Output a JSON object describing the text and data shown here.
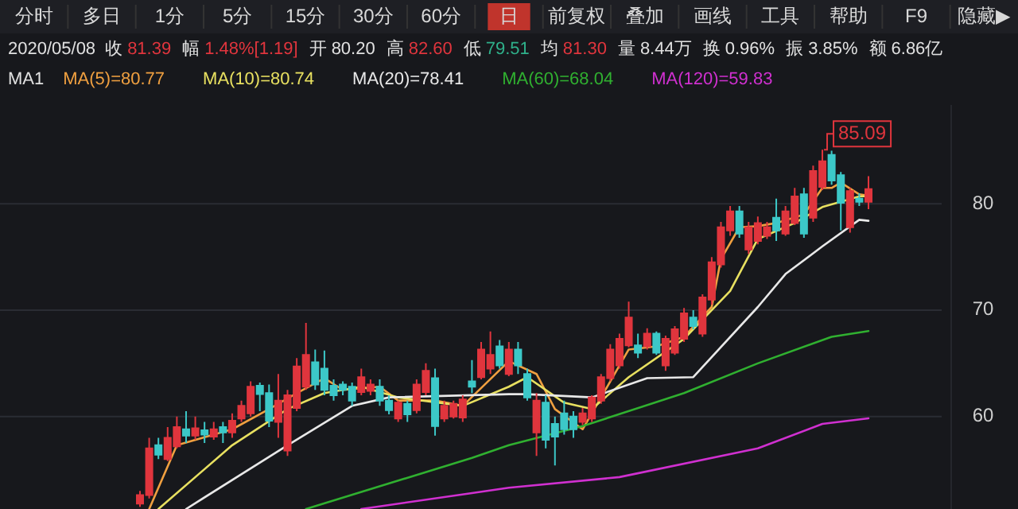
{
  "chart_data": {
    "type": "candlestick",
    "categories": [
      null,
      null,
      null,
      null,
      null,
      null,
      null,
      null,
      null,
      null,
      null,
      null,
      null,
      null,
      null,
      null,
      null,
      null,
      null,
      null,
      null,
      null,
      null,
      null,
      null,
      null,
      null,
      null,
      null,
      null,
      null,
      null,
      null,
      null,
      null,
      null,
      null,
      null,
      null,
      null,
      null,
      null,
      null,
      null,
      null,
      null,
      null,
      null,
      null,
      null,
      null,
      null,
      null,
      null,
      null,
      null,
      null,
      null,
      null,
      null,
      null,
      null,
      null,
      null,
      null,
      null,
      null,
      null,
      null,
      null,
      null,
      null,
      null,
      null,
      null,
      null,
      null,
      null,
      null,
      null
    ],
    "ohlc": [
      [
        51.8,
        53,
        51.5,
        52.6
      ],
      [
        52.6,
        58,
        52.3,
        57
      ],
      [
        57.3,
        58,
        56,
        56.4
      ],
      [
        56,
        59,
        55.8,
        58
      ],
      [
        57.2,
        60,
        57,
        59
      ],
      [
        58.8,
        60.5,
        57.5,
        58.2
      ],
      [
        58.2,
        60,
        57.8,
        58.9
      ],
      [
        58.7,
        59.5,
        57.5,
        58.3
      ],
      [
        58.1,
        59.5,
        57.8,
        58.8
      ],
      [
        59,
        59.5,
        57.5,
        58.5
      ],
      [
        58.5,
        60.3,
        58,
        59.6
      ],
      [
        59.8,
        61.5,
        59.5,
        61
      ],
      [
        60.3,
        63.3,
        60,
        62.8
      ],
      [
        62.9,
        63.2,
        60.5,
        62.1
      ],
      [
        62.2,
        63,
        59,
        59.6
      ],
      [
        59.5,
        64,
        58,
        61.5
      ],
      [
        56.8,
        62.5,
        56.3,
        62
      ],
      [
        60.8,
        65.5,
        60.5,
        64.7
      ],
      [
        62.8,
        68.8,
        62.5,
        65.8
      ],
      [
        65.1,
        66.3,
        62.5,
        63
      ],
      [
        64.5,
        66.2,
        62,
        62.5
      ],
      [
        62.9,
        63.5,
        61.5,
        62
      ],
      [
        63,
        63.3,
        62,
        62.5
      ],
      [
        62.8,
        63.2,
        61,
        61.5
      ],
      [
        62.3,
        64.5,
        62,
        63.7
      ],
      [
        62.4,
        63.5,
        62,
        63
      ],
      [
        62.8,
        63.5,
        61,
        61.5
      ],
      [
        61.5,
        62,
        60.2,
        60.6
      ],
      [
        59.8,
        61.5,
        59.5,
        61.3
      ],
      [
        61.2,
        61.5,
        59.5,
        60.2
      ],
      [
        60.6,
        63.5,
        60.3,
        63
      ],
      [
        62.3,
        65,
        62,
        64.3
      ],
      [
        63.6,
        64.5,
        58.2,
        59.1
      ],
      [
        59.8,
        61.5,
        59.5,
        61
      ],
      [
        60,
        61.5,
        59.8,
        61.2
      ],
      [
        59.9,
        62,
        59.5,
        61.6
      ],
      [
        63.3,
        65.3,
        62.2,
        62.8
      ],
      [
        63.7,
        67,
        63.5,
        66.3
      ],
      [
        64.5,
        68,
        64,
        65.8
      ],
      [
        66.6,
        67.2,
        64.5,
        64.8
      ],
      [
        64,
        67,
        63.8,
        66.3
      ],
      [
        66.3,
        67,
        64,
        64.8
      ],
      [
        64,
        64.5,
        61.5,
        61.8
      ],
      [
        58.5,
        62.2,
        56.3,
        61.5
      ],
      [
        61.3,
        62,
        57,
        57.8
      ],
      [
        59.3,
        60,
        55.4,
        58.1
      ],
      [
        60.3,
        61.5,
        58.3,
        58.8
      ],
      [
        60,
        60.5,
        58,
        58.8
      ],
      [
        59.5,
        60.8,
        59.2,
        60.3
      ],
      [
        59.8,
        62,
        59.5,
        61.8
      ],
      [
        61.5,
        64,
        61.2,
        63.7
      ],
      [
        63.6,
        66.8,
        63.3,
        66.3
      ],
      [
        64.8,
        67.8,
        64.5,
        67.3
      ],
      [
        66.7,
        70.8,
        66.5,
        69.3
      ],
      [
        66.7,
        67.8,
        65.5,
        66
      ],
      [
        66.6,
        68.3,
        66.3,
        67.8
      ],
      [
        67.8,
        68,
        65.8,
        66
      ],
      [
        64.8,
        67.6,
        64.3,
        67.3
      ],
      [
        66,
        68.5,
        65.8,
        68.2
      ],
      [
        67.3,
        70.2,
        67,
        69.7
      ],
      [
        69.3,
        70,
        68.2,
        68.5
      ],
      [
        67.8,
        71.5,
        67.5,
        71.2
      ],
      [
        71,
        75,
        70.5,
        74.5
      ],
      [
        74.3,
        78.3,
        74,
        77.8
      ],
      [
        77.5,
        79.8,
        77,
        79.3
      ],
      [
        79.3,
        79.8,
        76.8,
        77.2
      ],
      [
        75.7,
        78.3,
        75.3,
        77.8
      ],
      [
        76.5,
        78.8,
        76.2,
        78.2
      ],
      [
        77,
        78.3,
        76.7,
        77.8
      ],
      [
        78.7,
        80.5,
        76.5,
        77.5
      ],
      [
        77.2,
        79.8,
        77,
        79.3
      ],
      [
        78.2,
        81.5,
        78,
        80.7
      ],
      [
        80.9,
        81.5,
        76.8,
        77.2
      ],
      [
        78.7,
        83.6,
        78.3,
        83.1
      ],
      [
        81.6,
        85.09,
        81.3,
        84
      ],
      [
        84.6,
        85,
        81.8,
        82.2
      ],
      [
        82.7,
        83,
        77.5,
        80.1
      ],
      [
        77.8,
        81.5,
        77.3,
        81.2
      ],
      [
        80.5,
        81,
        79.8,
        80.2
      ],
      [
        80.2,
        82.6,
        79.51,
        81.39
      ]
    ],
    "series": [
      {
        "name": "MA(5)=80.77",
        "type": "line",
        "color": "#f0a040",
        "values": [
          null,
          51.3,
          null,
          null,
          57.3,
          null,
          null,
          null,
          null,
          null,
          58.8,
          null,
          null,
          null,
          60.7,
          null,
          null,
          62.2,
          null,
          null,
          63.6,
          null,
          62.5,
          null,
          null,
          null,
          62.8,
          null,
          61.5,
          null,
          null,
          null,
          61.5,
          null,
          null,
          61,
          null,
          null,
          null,
          null,
          65.2,
          null,
          null,
          64,
          null,
          60.7,
          null,
          null,
          58.8,
          null,
          61.8,
          null,
          null,
          66.3,
          null,
          null,
          66.6,
          null,
          null,
          67.5,
          null,
          null,
          70.3,
          74.8,
          null,
          77.8,
          null,
          77.9,
          null,
          78.2,
          null,
          null,
          79,
          null,
          81.5,
          81.5,
          82,
          null,
          80.9,
          80.77
        ]
      },
      {
        "name": "MA(10)=80.74",
        "type": "line",
        "color": "#e8e060",
        "values": [
          null,
          null,
          51.3,
          null,
          null,
          null,
          null,
          null,
          null,
          null,
          57.3,
          null,
          null,
          null,
          null,
          null,
          60.7,
          null,
          null,
          null,
          62.2,
          null,
          null,
          null,
          62.8,
          null,
          null,
          null,
          61.8,
          null,
          null,
          null,
          null,
          null,
          null,
          61,
          null,
          null,
          null,
          null,
          62.8,
          null,
          63.7,
          null,
          null,
          null,
          61.3,
          null,
          null,
          60.7,
          null,
          null,
          null,
          63.7,
          null,
          null,
          null,
          null,
          null,
          67.3,
          null,
          null,
          null,
          null,
          71.8,
          null,
          null,
          76.7,
          null,
          null,
          null,
          78.2,
          null,
          null,
          79.7,
          null,
          null,
          null,
          80.7,
          80.74
        ]
      },
      {
        "name": "MA(20)=78.41",
        "type": "line",
        "color": "#e8e8e8",
        "values": [
          null,
          null,
          null,
          null,
          null,
          51.3,
          null,
          null,
          null,
          null,
          null,
          null,
          null,
          null,
          null,
          null,
          57.3,
          null,
          null,
          null,
          null,
          null,
          null,
          61,
          null,
          null,
          null,
          61.8,
          null,
          null,
          null,
          null,
          null,
          null,
          null,
          null,
          null,
          null,
          null,
          null,
          62.1,
          null,
          62.1,
          null,
          null,
          null,
          null,
          null,
          null,
          61.8,
          null,
          null,
          null,
          null,
          null,
          63.6,
          null,
          null,
          null,
          null,
          63.7,
          null,
          null,
          null,
          null,
          null,
          null,
          70.3,
          null,
          null,
          73.4,
          null,
          null,
          null,
          76,
          null,
          null,
          null,
          78.5,
          78.41
        ]
      },
      {
        "name": "MA(60)=68.04",
        "type": "line",
        "color": "#30b030",
        "values": [
          null,
          null,
          null,
          null,
          null,
          null,
          null,
          null,
          null,
          null,
          null,
          null,
          null,
          null,
          null,
          null,
          null,
          null,
          51.3,
          null,
          null,
          null,
          null,
          null,
          null,
          null,
          null,
          null,
          null,
          null,
          null,
          null,
          null,
          null,
          null,
          null,
          56.1,
          null,
          null,
          null,
          57.3,
          null,
          null,
          null,
          null,
          null,
          null,
          null,
          59.1,
          null,
          null,
          null,
          null,
          null,
          null,
          null,
          null,
          null,
          null,
          62.2,
          null,
          null,
          null,
          null,
          null,
          null,
          null,
          65,
          null,
          null,
          null,
          null,
          null,
          null,
          null,
          67.5,
          null,
          null,
          null,
          68.04
        ]
      },
      {
        "name": "MA(120)=59.83",
        "type": "line",
        "color": "#d030d0",
        "values": [
          null,
          null,
          null,
          null,
          null,
          null,
          null,
          null,
          null,
          null,
          null,
          null,
          null,
          null,
          null,
          null,
          null,
          null,
          null,
          null,
          null,
          null,
          null,
          null,
          51.3,
          null,
          null,
          null,
          null,
          null,
          null,
          null,
          null,
          null,
          null,
          null,
          52.8,
          null,
          null,
          null,
          53.3,
          null,
          null,
          null,
          null,
          null,
          null,
          null,
          null,
          null,
          null,
          null,
          54.3,
          null,
          null,
          null,
          null,
          null,
          null,
          null,
          null,
          null,
          null,
          null,
          null,
          null,
          null,
          57,
          null,
          null,
          null,
          null,
          null,
          null,
          59.3,
          null,
          null,
          null,
          null,
          59.83
        ]
      }
    ],
    "ylim": [
      51.3,
      89.3
    ],
    "yticks": [
      60,
      70,
      80
    ],
    "grid": "y",
    "legend": "top",
    "annotations": [
      "分时",
      "多日",
      "1分",
      "5分",
      "15分",
      "30分",
      "60分",
      "日",
      "前复权",
      "叠加",
      "画线",
      "工具",
      "帮助",
      "F9",
      "隐藏▶",
      "2020/05/08",
      "收",
      "81.39",
      "幅",
      "1.48%[1.19]",
      "开",
      "80.20",
      "高",
      "82.60",
      "低",
      "79.51",
      "均",
      "81.30",
      "量",
      "8.44万",
      "换",
      "0.96%",
      "振",
      "3.85%",
      "额",
      "6.86亿",
      "MA1",
      "85.09"
    ]
  }
}
